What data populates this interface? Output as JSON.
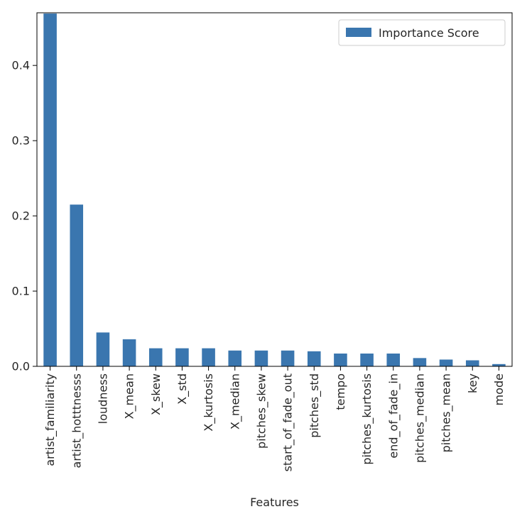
{
  "chart_data": {
    "type": "bar",
    "title": "",
    "xlabel": "Features",
    "ylabel": "",
    "categories": [
      "artist_familiarity",
      "artist_hotttnesss",
      "loudness",
      "X_mean",
      "X_skew",
      "X_std",
      "X_kurtosis",
      "X_median",
      "pitches_skew",
      "start_of_fade_out",
      "pitches_std",
      "tempo",
      "pitches_kurtosis",
      "end_of_fade_in",
      "pitches_median",
      "pitches_mean",
      "key",
      "mode"
    ],
    "series": [
      {
        "name": "Importance Score",
        "color": "#3a76af",
        "values": [
          0.469,
          0.215,
          0.045,
          0.036,
          0.024,
          0.024,
          0.024,
          0.021,
          0.021,
          0.021,
          0.02,
          0.017,
          0.017,
          0.017,
          0.011,
          0.009,
          0.008,
          0.003
        ]
      }
    ],
    "ylim": [
      0,
      0.47
    ],
    "yticks": [
      0.0,
      0.1,
      0.2,
      0.3,
      0.4
    ],
    "ytick_labels": [
      "0.0",
      "0.1",
      "0.2",
      "0.3",
      "0.4"
    ],
    "grid": false,
    "legend": {
      "position": "top-right",
      "entries": [
        "Importance Score"
      ]
    }
  }
}
